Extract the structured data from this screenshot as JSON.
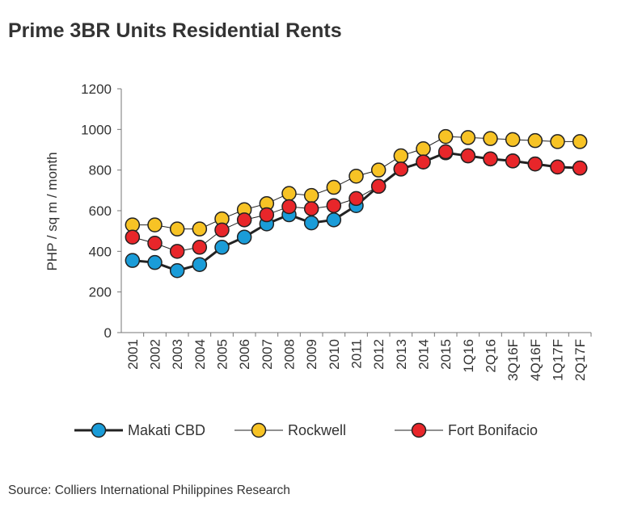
{
  "chart_data": {
    "type": "line",
    "title": "Prime 3BR Units Residential Rents",
    "y_label": "PHP / sq m / month",
    "source": "Source: Colliers International Philippines Research",
    "categories": [
      "2001",
      "2002",
      "2003",
      "2004",
      "2005",
      "2006",
      "2007",
      "2008",
      "2009",
      "2010",
      "2011",
      "2012",
      "2013",
      "2014",
      "2015",
      "1Q16",
      "2Q16",
      "3Q16F",
      "4Q16F",
      "1Q17F",
      "2Q17F"
    ],
    "series": [
      {
        "name": "Makati CBD",
        "color": "#1a9cd8",
        "line_width": 3,
        "values": [
          355,
          345,
          305,
          335,
          420,
          470,
          535,
          580,
          540,
          555,
          625,
          720,
          805,
          840,
          885,
          870,
          855,
          845,
          830,
          815,
          810
        ]
      },
      {
        "name": "Rockwell",
        "color": "#f7c325",
        "line_width": 1,
        "values": [
          530,
          530,
          510,
          510,
          560,
          605,
          635,
          685,
          675,
          715,
          770,
          800,
          870,
          905,
          965,
          960,
          955,
          950,
          945,
          940,
          940
        ]
      },
      {
        "name": "Fort Bonifacio",
        "color": "#e8262a",
        "line_width": 1,
        "values": [
          470,
          440,
          400,
          420,
          505,
          555,
          580,
          620,
          610,
          625,
          660,
          720,
          805,
          840,
          890,
          870,
          855,
          845,
          830,
          815,
          810
        ]
      }
    ],
    "ylim": [
      0,
      1200
    ],
    "yticks": [
      0,
      200,
      400,
      600,
      800,
      1000,
      1200
    ],
    "grid": false
  }
}
